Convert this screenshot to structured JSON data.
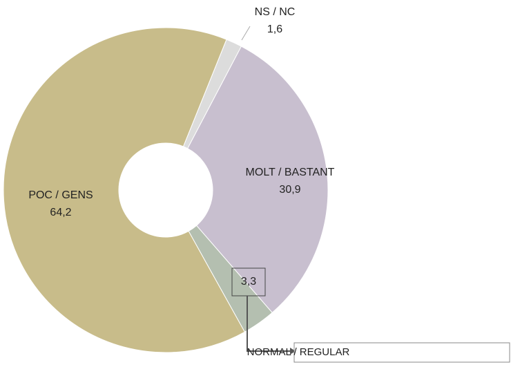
{
  "chart_data": {
    "type": "pie",
    "categories": [
      "NS / NC",
      "MOLT / BASTANT",
      "NORMAL / REGULAR",
      "POC / GENS"
    ],
    "values": [
      1.6,
      30.9,
      3.3,
      64.2
    ],
    "value_labels": [
      "1,6",
      "30,9",
      "3,3",
      "64,2"
    ],
    "colors": [
      "#dcdcdc",
      "#c8bfcf",
      "#b4bfb0",
      "#c8bc8a"
    ]
  }
}
